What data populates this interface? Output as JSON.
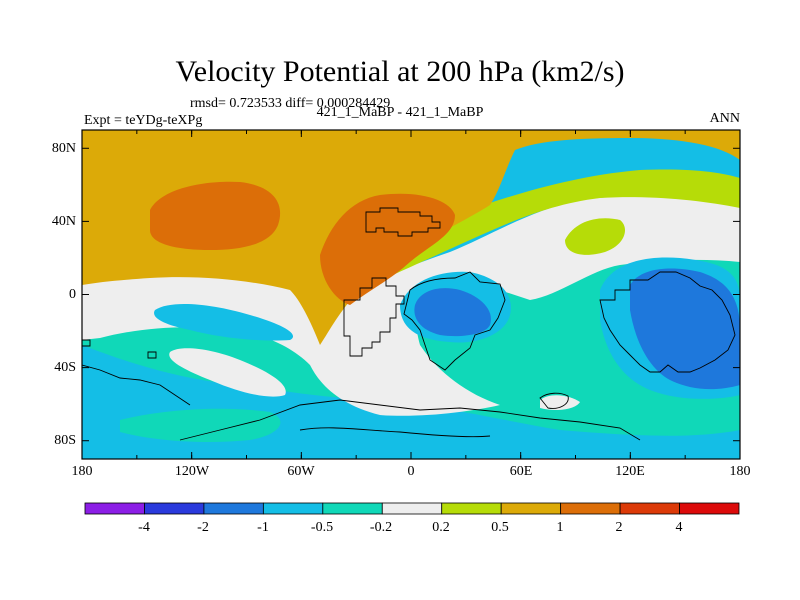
{
  "title": "Velocity Potential at 200 hPa (km2/s)",
  "stats": "rmsd= 0.723533 diff= 0.000284429",
  "expt": "Expt = teYDg-teXPg",
  "cases": "421_1_MaBP - 421_1_MaBP",
  "season": "ANN",
  "y_ticks": [
    "80N",
    "40N",
    "0",
    "40S",
    "80S"
  ],
  "x_ticks": [
    "180",
    "120W",
    "60W",
    "0",
    "60E",
    "120E",
    "180"
  ],
  "colorbar": {
    "colors": [
      "#8c1ee6",
      "#2a3adc",
      "#1e78dc",
      "#14bee6",
      "#10d8b8",
      "#eeeeee",
      "#b6dc08",
      "#dcaa08",
      "#dc6e08",
      "#dc3a08",
      "#dc0a0a"
    ],
    "labels": [
      "-4",
      "-2",
      "-1",
      "-0.5",
      "-0.2",
      "0.2",
      "0.5",
      "1",
      "2",
      "4"
    ]
  },
  "palette": {
    "cyan": "#14bee6",
    "teal": "#10d8b8",
    "white": "#eeeeee",
    "green": "#b6dc08",
    "gold": "#dcaa08",
    "orange": "#dc6e08",
    "blue": "#1e78dc"
  }
}
